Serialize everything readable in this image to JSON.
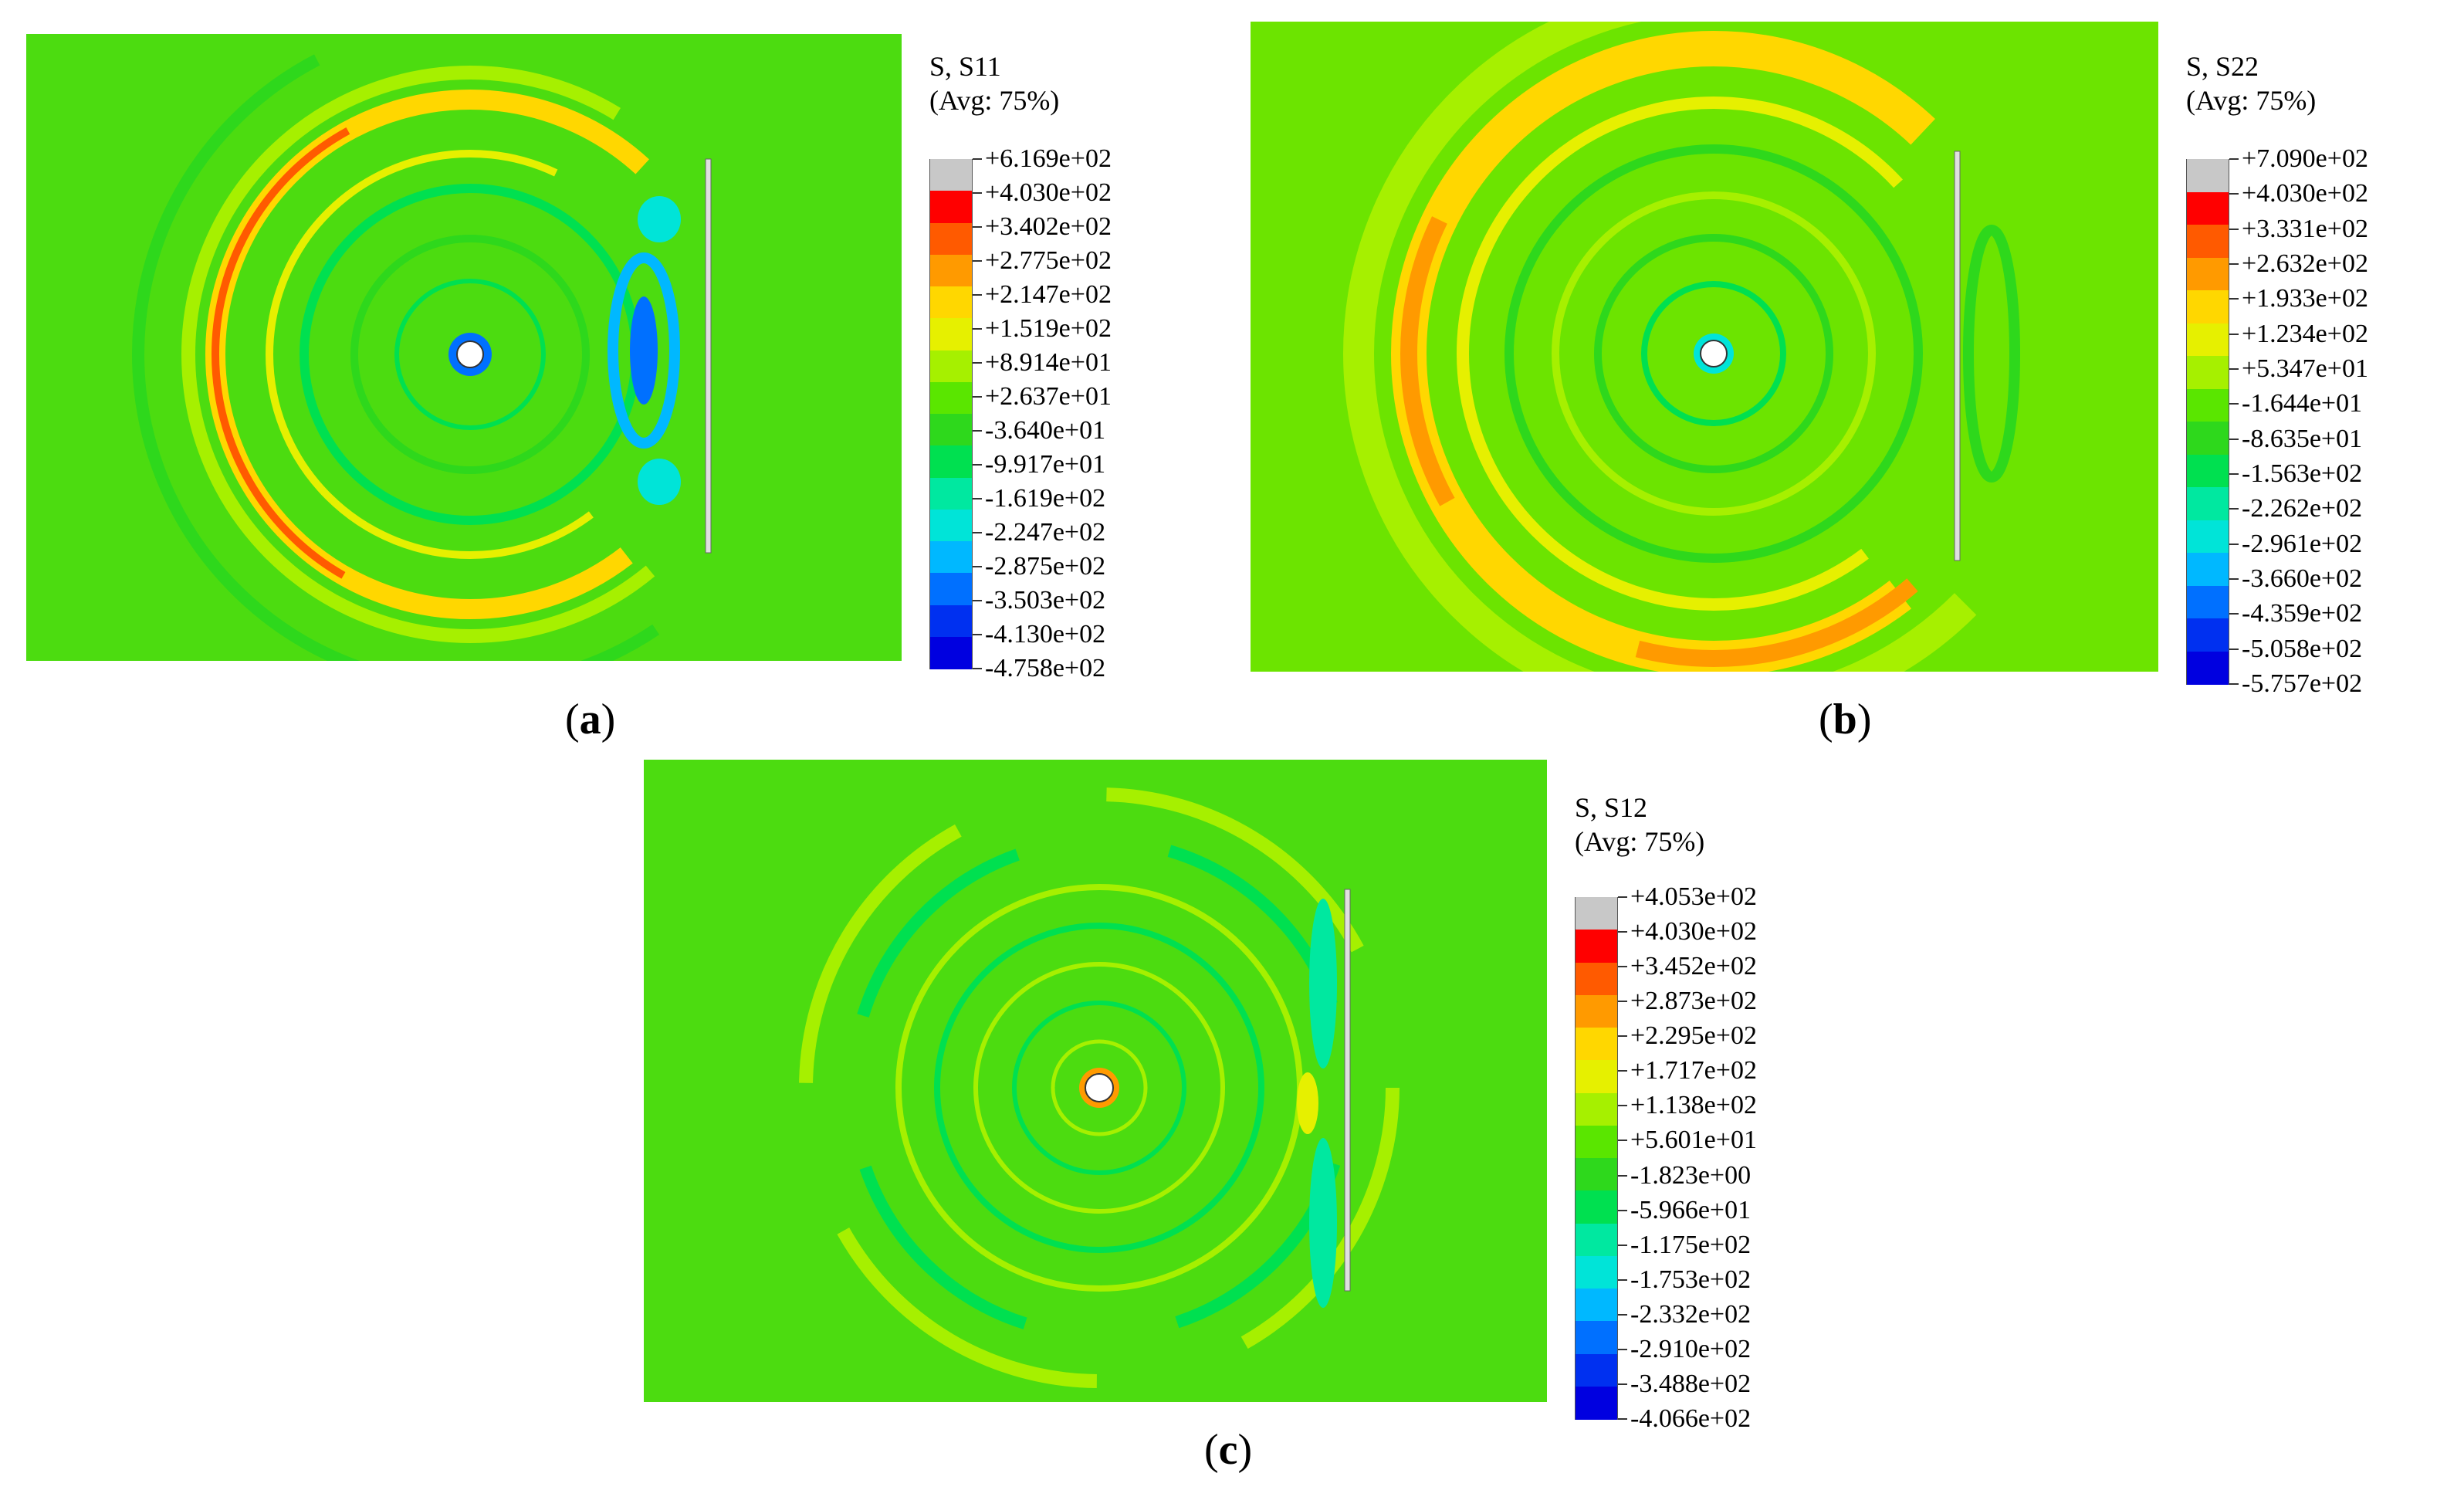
{
  "panels": [
    {
      "id": "a",
      "caption_letter": "a",
      "legend_title_line1": "S, S11",
      "legend_title_line2": "(Avg: 75%)",
      "legend_values": [
        "+6.169e+02",
        "+4.030e+02",
        "+3.402e+02",
        "+2.775e+02",
        "+2.147e+02",
        "+1.519e+02",
        "+8.914e+01",
        "+2.637e+01",
        "-3.640e+01",
        "-9.917e+01",
        "-1.619e+02",
        "-2.247e+02",
        "-2.875e+02",
        "-3.503e+02",
        "-4.130e+02",
        "-4.758e+02"
      ]
    },
    {
      "id": "b",
      "caption_letter": "b",
      "legend_title_line1": "S, S22",
      "legend_title_line2": "(Avg: 75%)",
      "legend_values": [
        "+7.090e+02",
        "+4.030e+02",
        "+3.331e+02",
        "+2.632e+02",
        "+1.933e+02",
        "+1.234e+02",
        "+5.347e+01",
        "-1.644e+01",
        "-8.635e+01",
        "-1.563e+02",
        "-2.262e+02",
        "-2.961e+02",
        "-3.660e+02",
        "-4.359e+02",
        "-5.058e+02",
        "-5.757e+02"
      ]
    },
    {
      "id": "c",
      "caption_letter": "c",
      "legend_title_line1": "S, S12",
      "legend_title_line2": "(Avg: 75%)",
      "legend_values": [
        "+4.053e+02",
        "+4.030e+02",
        "+3.452e+02",
        "+2.873e+02",
        "+2.295e+02",
        "+1.717e+02",
        "+1.138e+02",
        "+5.601e+01",
        "-1.823e+00",
        "-5.966e+01",
        "-1.175e+02",
        "-1.753e+02",
        "-2.332e+02",
        "-2.910e+02",
        "-3.488e+02",
        "-4.066e+02"
      ]
    }
  ],
  "colormap": [
    "#c8c8c8",
    "#ff0000",
    "#ff5a00",
    "#ff9a00",
    "#ffd700",
    "#e6f000",
    "#a6f000",
    "#5ae600",
    "#2ed81c",
    "#00e050",
    "#00e8a0",
    "#00e4d8",
    "#00b8ff",
    "#0070ff",
    "#0030f0",
    "#0000e0"
  ],
  "background_color": "#4cdc10"
}
